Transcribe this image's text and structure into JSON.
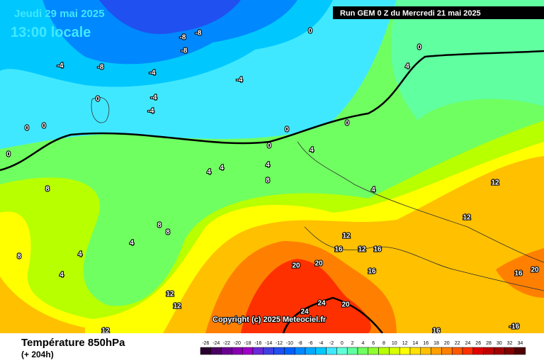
{
  "header": {
    "date": "Jeudi 29 mai 2025",
    "time": "13:00 locale",
    "run": "Run GEM 0 Z du Mercredi 21 mai 2025"
  },
  "footer": {
    "title": "Température 850hPa",
    "lead": "(+ 204h)",
    "copyright": "Copyright (c) 2025 Meteociel.fr"
  },
  "legend": {
    "values": [
      -26,
      -24,
      -22,
      -20,
      -18,
      -16,
      -14,
      -12,
      -10,
      -8,
      -6,
      -4,
      -2,
      0,
      2,
      4,
      6,
      8,
      10,
      12,
      14,
      16,
      18,
      20,
      22,
      24,
      26,
      28,
      30,
      32,
      34
    ],
    "colors": [
      "#2a0030",
      "#4a0060",
      "#6a0090",
      "#8800b0",
      "#a000c8",
      "#6a2ad8",
      "#4040e0",
      "#2050f0",
      "#0060ff",
      "#0088ff",
      "#00a8ff",
      "#00c8ff",
      "#40e8ff",
      "#60ffd8",
      "#60ffa0",
      "#70ff60",
      "#90ff30",
      "#b8ff00",
      "#d8ff00",
      "#ffff00",
      "#ffe000",
      "#ffc000",
      "#ffa000",
      "#ff8000",
      "#ff5800",
      "#ff3000",
      "#e00000",
      "#c00000",
      "#a00000",
      "#800000",
      "#500000"
    ]
  },
  "contour_labels": [
    -8,
    -8,
    -8,
    -8,
    -4,
    -4,
    -4,
    -4,
    -4,
    0,
    0,
    0,
    0,
    0,
    0,
    0,
    0,
    0,
    4,
    4,
    4,
    4,
    4,
    4,
    8,
    8,
    8,
    8,
    8,
    4,
    4,
    4,
    12,
    12,
    12,
    12,
    16,
    16,
    16,
    20,
    20,
    24,
    24,
    20,
    16,
    16,
    20,
    12,
    12,
    12,
    -16
  ]
}
